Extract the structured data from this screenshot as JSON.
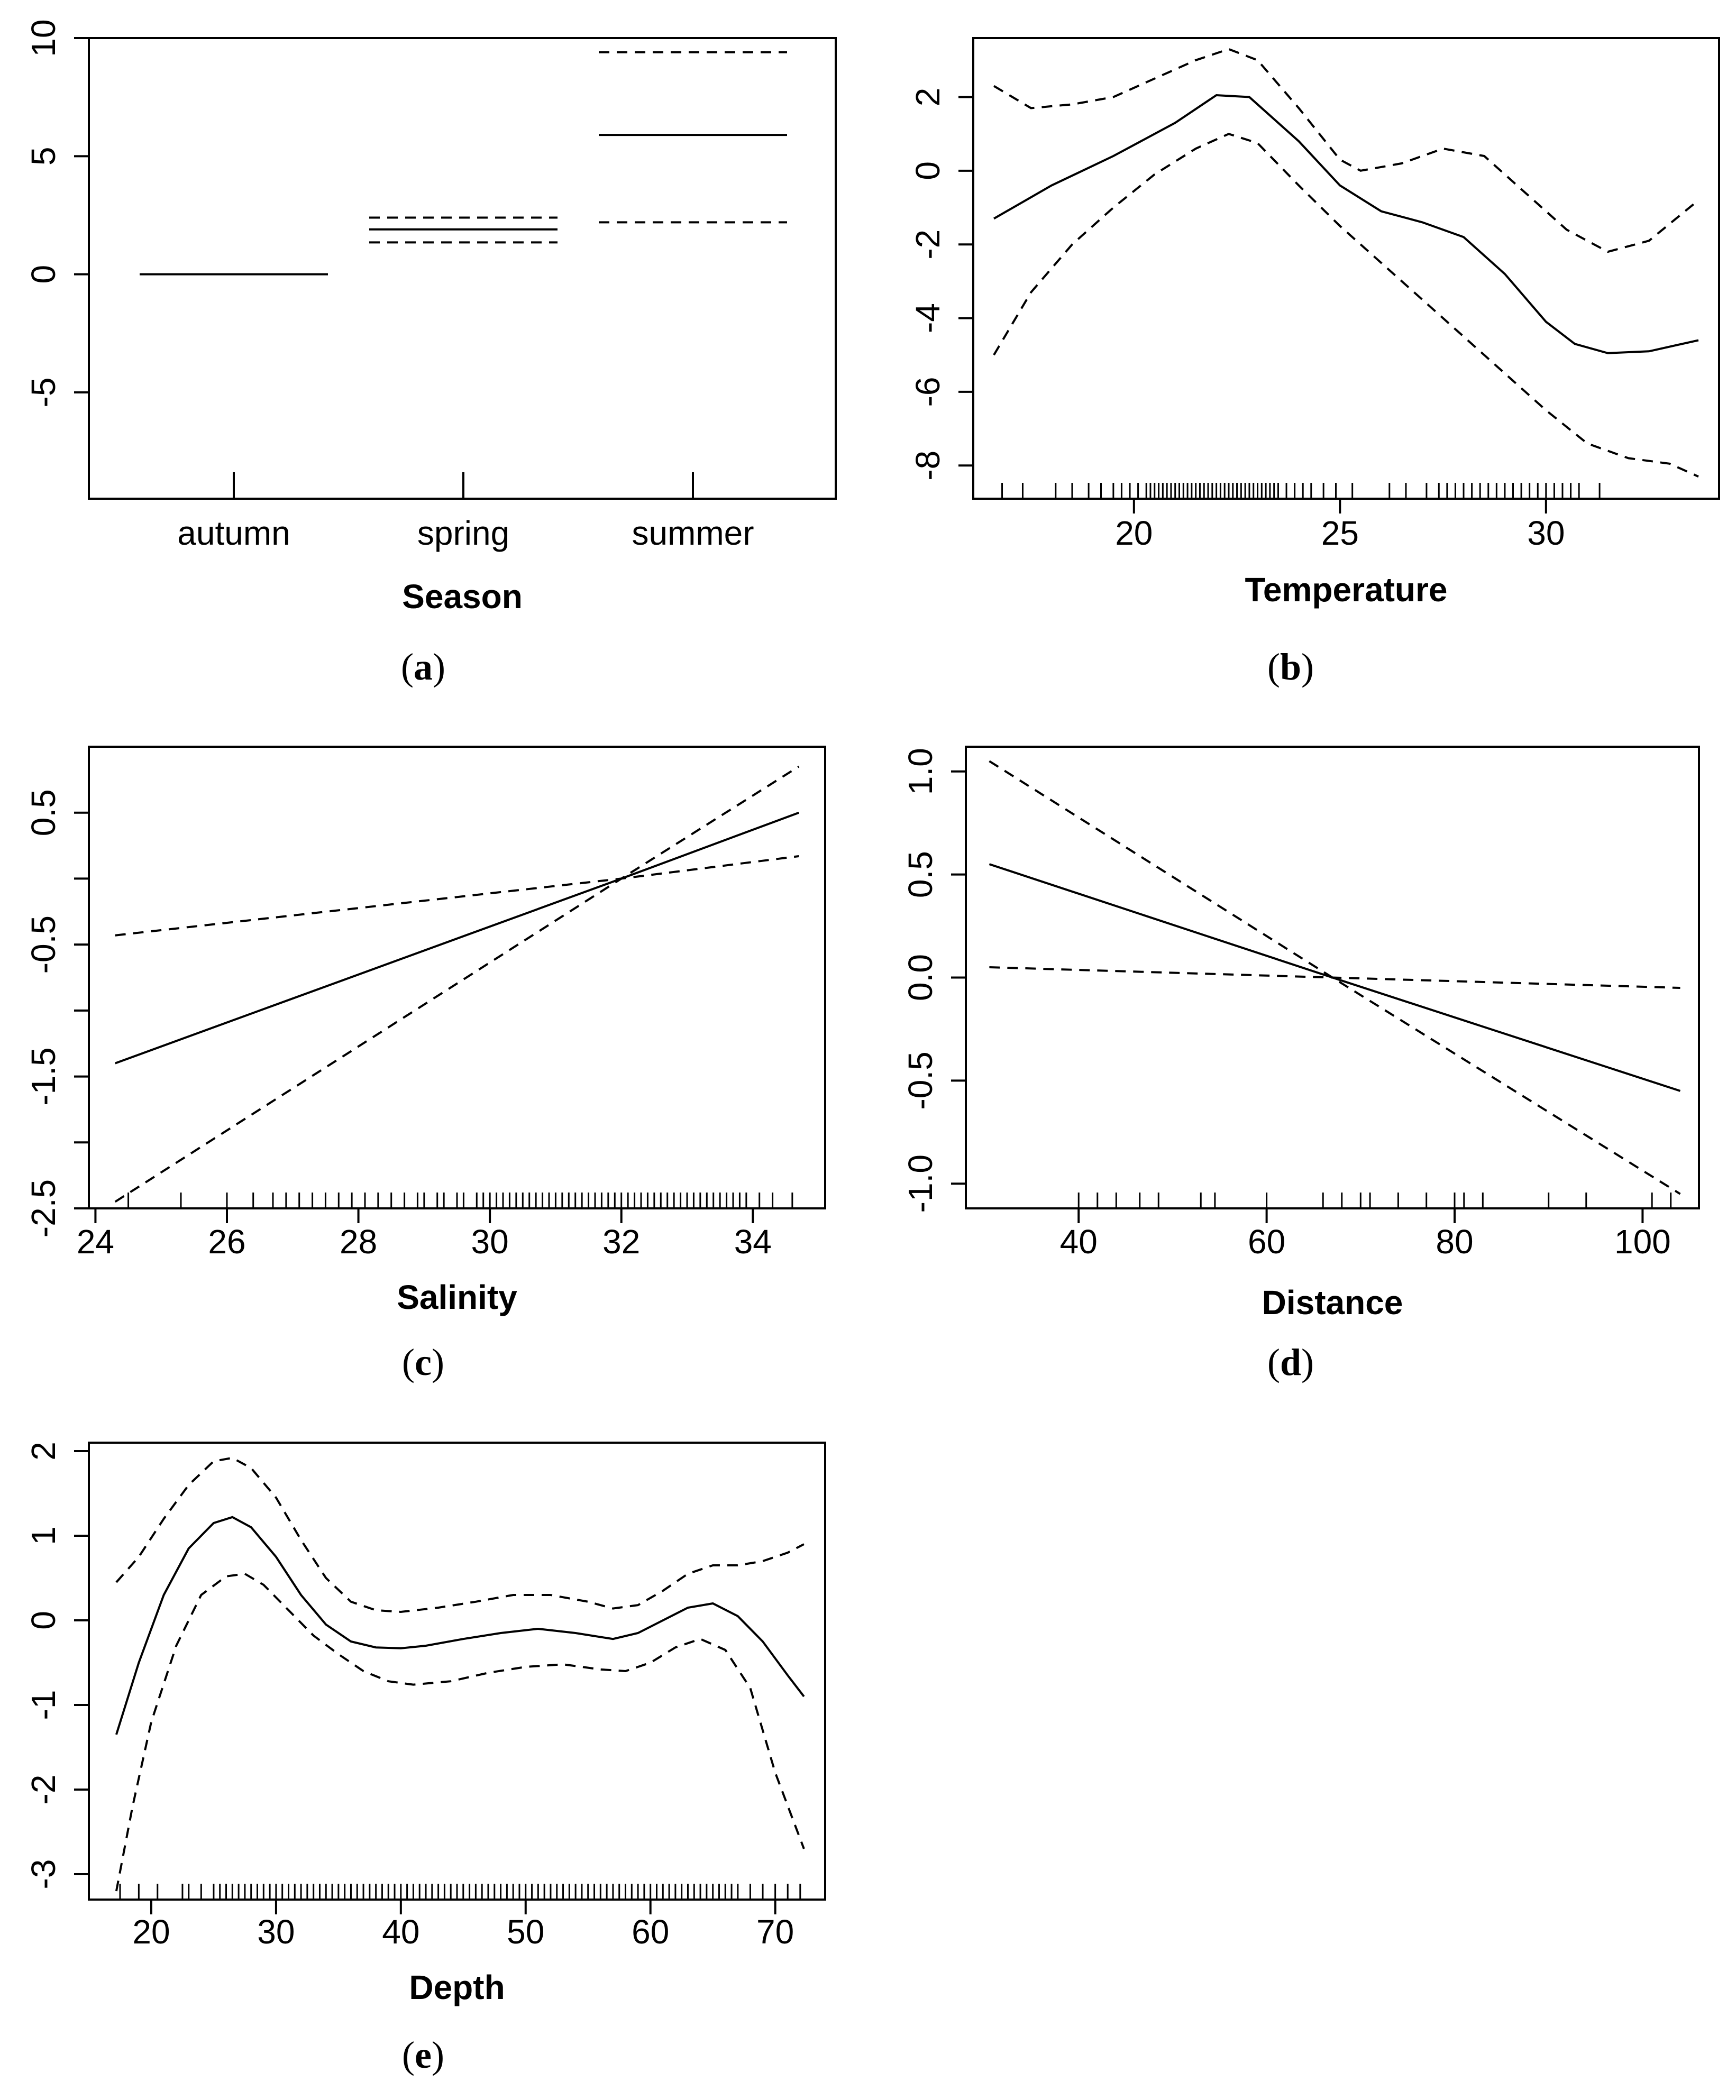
{
  "chart_data": [
    {
      "id": "a",
      "type": "line",
      "caption_letter": "a",
      "xlabel": "Season",
      "ylabel": "",
      "categories": [
        "autumn",
        "spring",
        "summer"
      ],
      "ylim": [
        -9.5,
        10
      ],
      "yticks": [
        {
          "value": -5,
          "label": "-5"
        },
        {
          "value": 0,
          "label": "0"
        },
        {
          "value": 5,
          "label": "5"
        },
        {
          "value": 10,
          "label": "10"
        }
      ],
      "series": [
        {
          "name": "fit",
          "style": "solid",
          "values": [
            0,
            1.9,
            5.9
          ]
        },
        {
          "name": "upper",
          "style": "dashed",
          "values": [
            null,
            2.4,
            9.4
          ]
        },
        {
          "name": "lower",
          "style": "dashed",
          "values": [
            null,
            1.35,
            2.2
          ]
        }
      ]
    },
    {
      "id": "b",
      "type": "line",
      "caption_letter": "b",
      "xlabel": "Temperature",
      "ylabel": "",
      "xlim": [
        16.1,
        34.2
      ],
      "ylim": [
        -8.9,
        3.6
      ],
      "xticks": [
        {
          "value": 20,
          "label": "20"
        },
        {
          "value": 25,
          "label": "25"
        },
        {
          "value": 30,
          "label": "30"
        }
      ],
      "yticks": [
        {
          "value": -8,
          "label": "-8"
        },
        {
          "value": -6,
          "label": "-6"
        },
        {
          "value": -4,
          "label": "-4"
        },
        {
          "value": -2,
          "label": "-2"
        },
        {
          "value": 0,
          "label": "0"
        },
        {
          "value": 2,
          "label": "2"
        }
      ],
      "series": [
        {
          "name": "fit",
          "style": "solid",
          "x": [
            16.6,
            18,
            19.5,
            21,
            22,
            22.8,
            24,
            25,
            26,
            27,
            28,
            29,
            30,
            30.7,
            31.5,
            32.5,
            33.7
          ],
          "y": [
            -1.3,
            -0.4,
            0.4,
            1.3,
            2.05,
            2.0,
            0.8,
            -0.4,
            -1.1,
            -1.4,
            -1.8,
            -2.8,
            -4.1,
            -4.7,
            -4.95,
            -4.9,
            -4.6
          ]
        },
        {
          "name": "upper",
          "style": "dashed",
          "x": [
            16.6,
            17.5,
            18.5,
            19.5,
            20.5,
            21.5,
            22.3,
            23,
            24,
            25,
            25.5,
            26.5,
            27.5,
            28.5,
            29.5,
            30.5,
            31.5,
            32.5,
            33.7
          ],
          "y": [
            2.3,
            1.7,
            1.8,
            2.0,
            2.5,
            3.0,
            3.3,
            3.0,
            1.7,
            0.3,
            0.0,
            0.2,
            0.6,
            0.4,
            -0.6,
            -1.6,
            -2.2,
            -1.9,
            -0.8
          ]
        },
        {
          "name": "lower",
          "style": "dashed",
          "x": [
            16.6,
            17.5,
            18.5,
            19.5,
            20.5,
            21.5,
            22.3,
            23,
            24,
            25,
            26,
            27,
            28,
            29,
            30,
            31,
            32,
            33,
            33.7
          ],
          "y": [
            -5.0,
            -3.3,
            -2.0,
            -1.0,
            -0.1,
            0.6,
            1.0,
            0.75,
            -0.4,
            -1.5,
            -2.5,
            -3.5,
            -4.5,
            -5.5,
            -6.5,
            -7.4,
            -7.8,
            -7.95,
            -8.3
          ]
        }
      ],
      "rug": [
        16.8,
        17.3,
        18.1,
        18.5,
        18.9,
        19.2,
        19.5,
        19.7,
        19.9,
        20.1,
        20.3,
        20.4,
        20.5,
        20.6,
        20.7,
        20.8,
        20.9,
        21.0,
        21.1,
        21.2,
        21.3,
        21.4,
        21.5,
        21.6,
        21.7,
        21.8,
        21.9,
        22.0,
        22.1,
        22.2,
        22.3,
        22.4,
        22.5,
        22.6,
        22.7,
        22.8,
        22.9,
        23.0,
        23.1,
        23.2,
        23.3,
        23.4,
        23.5,
        23.7,
        23.9,
        24.1,
        24.3,
        24.6,
        24.9,
        25.3,
        26.2,
        26.6,
        27.1,
        27.4,
        27.6,
        27.8,
        28.0,
        28.2,
        28.4,
        28.6,
        28.8,
        29.0,
        29.2,
        29.4,
        29.6,
        29.8,
        30.0,
        30.2,
        30.4,
        30.6,
        30.8,
        31.3
      ]
    },
    {
      "id": "c",
      "type": "line",
      "caption_letter": "c",
      "xlabel": "Salinity",
      "ylabel": "",
      "xlim": [
        23.9,
        35.1
      ],
      "ylim": [
        -2.5,
        1.0
      ],
      "xticks": [
        {
          "value": 24,
          "label": "24"
        },
        {
          "value": 26,
          "label": "26"
        },
        {
          "value": 28,
          "label": "28"
        },
        {
          "value": 30,
          "label": "30"
        },
        {
          "value": 32,
          "label": "32"
        },
        {
          "value": 34,
          "label": "34"
        }
      ],
      "yticks": [
        {
          "value": -2.5,
          "label": "-2.5"
        },
        {
          "value": -1.5,
          "label": "-1.5"
        },
        {
          "value": -0.5,
          "label": "-0.5"
        },
        {
          "value": 0.5,
          "label": "0.5"
        }
      ],
      "minor_yticks": [
        -2,
        -1,
        0
      ],
      "series": [
        {
          "name": "fit",
          "style": "solid",
          "x": [
            24.3,
            32,
            34.7
          ],
          "y": [
            -1.4,
            0.0,
            0.5
          ]
        },
        {
          "name": "upper",
          "style": "dashed",
          "x": [
            24.3,
            32,
            34.7
          ],
          "y": [
            -2.45,
            0.0,
            0.85
          ]
        },
        {
          "name": "lower",
          "style": "dashed",
          "x": [
            24.3,
            32,
            34.7
          ],
          "y": [
            -0.43,
            0.0,
            0.17
          ]
        }
      ],
      "rug": [
        24.5,
        25.3,
        26,
        26.4,
        26.7,
        26.9,
        27.1,
        27.3,
        27.5,
        27.7,
        27.9,
        28.1,
        28.3,
        28.5,
        28.7,
        28.9,
        29.0,
        29.2,
        29.3,
        29.5,
        29.6,
        29.8,
        29.9,
        30.0,
        30.1,
        30.2,
        30.3,
        30.4,
        30.5,
        30.6,
        30.7,
        30.8,
        30.9,
        31.0,
        31.1,
        31.2,
        31.3,
        31.4,
        31.5,
        31.6,
        31.7,
        31.8,
        31.9,
        32.0,
        32.1,
        32.2,
        32.3,
        32.4,
        32.5,
        32.6,
        32.7,
        32.8,
        32.9,
        33.0,
        33.1,
        33.2,
        33.3,
        33.4,
        33.5,
        33.6,
        33.7,
        33.8,
        33.9,
        34.1,
        34.3,
        34.6
      ]
    },
    {
      "id": "d",
      "type": "line",
      "caption_letter": "d",
      "xlabel": "Distance",
      "ylabel": "",
      "xlim": [
        28,
        106
      ],
      "ylim": [
        -1.12,
        1.12
      ],
      "xticks": [
        {
          "value": 40,
          "label": "40"
        },
        {
          "value": 60,
          "label": "60"
        },
        {
          "value": 80,
          "label": "80"
        },
        {
          "value": 100,
          "label": "100"
        }
      ],
      "yticks": [
        {
          "value": -1.0,
          "label": "-1.0"
        },
        {
          "value": -0.5,
          "label": "-0.5"
        },
        {
          "value": 0.0,
          "label": "0.0"
        },
        {
          "value": 0.5,
          "label": "0.5"
        },
        {
          "value": 1.0,
          "label": "1.0"
        }
      ],
      "series": [
        {
          "name": "fit",
          "style": "solid",
          "x": [
            30.5,
            67,
            104
          ],
          "y": [
            0.55,
            0.0,
            -0.55
          ]
        },
        {
          "name": "upper",
          "style": "dashed",
          "x": [
            30.5,
            67,
            104
          ],
          "y": [
            1.05,
            0.0,
            -1.05
          ]
        },
        {
          "name": "lower",
          "style": "dashed",
          "x": [
            30.5,
            67,
            104
          ],
          "y": [
            0.05,
            0.0,
            -0.05
          ]
        }
      ],
      "rug": [
        40,
        42,
        44,
        46.5,
        48.5,
        53,
        54.5,
        60,
        66,
        68,
        70,
        71,
        74,
        77,
        80,
        81,
        83,
        90,
        94,
        101,
        103
      ]
    },
    {
      "id": "e",
      "type": "line",
      "caption_letter": "e",
      "xlabel": "Depth",
      "ylabel": "",
      "xlim": [
        15,
        74
      ],
      "ylim": [
        -3.3,
        2.1
      ],
      "xticks": [
        {
          "value": 20,
          "label": "20"
        },
        {
          "value": 30,
          "label": "30"
        },
        {
          "value": 40,
          "label": "40"
        },
        {
          "value": 50,
          "label": "50"
        },
        {
          "value": 60,
          "label": "60"
        },
        {
          "value": 70,
          "label": "70"
        }
      ],
      "yticks": [
        {
          "value": -3,
          "label": "-3"
        },
        {
          "value": -2,
          "label": "-2"
        },
        {
          "value": -1,
          "label": "-1"
        },
        {
          "value": 0,
          "label": "0"
        },
        {
          "value": 1,
          "label": "1"
        },
        {
          "value": 2,
          "label": "2"
        }
      ],
      "series": [
        {
          "name": "fit",
          "style": "solid",
          "x": [
            17.2,
            19,
            21,
            23,
            25,
            26.5,
            28,
            30,
            32,
            34,
            36,
            38,
            40,
            42,
            45,
            48,
            51,
            54,
            57,
            59,
            61,
            63,
            65,
            67,
            69,
            71,
            72.3
          ],
          "y": [
            -1.35,
            -0.5,
            0.3,
            0.85,
            1.15,
            1.22,
            1.1,
            0.75,
            0.3,
            -0.05,
            -0.25,
            -0.32,
            -0.33,
            -0.3,
            -0.22,
            -0.15,
            -0.1,
            -0.15,
            -0.22,
            -0.15,
            0.0,
            0.15,
            0.2,
            0.05,
            -0.25,
            -0.65,
            -0.9
          ]
        },
        {
          "name": "upper",
          "style": "dashed",
          "x": [
            17.2,
            19,
            21,
            23,
            25,
            26.5,
            28,
            30,
            32,
            34,
            36,
            38,
            40,
            43,
            46,
            49,
            52,
            55,
            57,
            59,
            61,
            63,
            65,
            67,
            69,
            71,
            72.3
          ],
          "y": [
            0.45,
            0.75,
            1.2,
            1.6,
            1.88,
            1.92,
            1.8,
            1.45,
            0.95,
            0.5,
            0.22,
            0.12,
            0.1,
            0.15,
            0.22,
            0.3,
            0.3,
            0.22,
            0.14,
            0.18,
            0.35,
            0.55,
            0.65,
            0.65,
            0.7,
            0.8,
            0.9
          ]
        },
        {
          "name": "lower",
          "style": "dashed",
          "x": [
            17.2,
            18.5,
            20,
            22,
            24,
            26,
            27.5,
            29,
            31,
            33,
            35,
            37,
            39,
            41,
            44,
            47,
            50,
            53,
            56,
            58,
            60,
            62,
            64,
            66,
            68,
            70,
            72.3
          ],
          "y": [
            -3.2,
            -2.2,
            -1.2,
            -0.3,
            0.3,
            0.52,
            0.55,
            0.42,
            0.12,
            -0.18,
            -0.4,
            -0.6,
            -0.72,
            -0.76,
            -0.72,
            -0.62,
            -0.55,
            -0.52,
            -0.58,
            -0.6,
            -0.5,
            -0.32,
            -0.22,
            -0.35,
            -0.8,
            -1.8,
            -2.7
          ]
        }
      ],
      "rug": [
        17.5,
        19,
        20.5,
        22.5,
        23,
        24,
        25,
        25.5,
        26,
        26.5,
        27,
        27.5,
        28,
        28.5,
        29,
        29.5,
        30,
        30.5,
        31,
        31.5,
        32,
        32.5,
        33,
        33.5,
        34,
        34.5,
        35,
        35.5,
        36,
        36.5,
        37,
        37.5,
        38,
        38.5,
        39,
        39.5,
        40,
        40.5,
        41,
        41.5,
        42,
        42.5,
        43,
        43.5,
        44,
        44.5,
        45,
        45.5,
        46,
        46.5,
        47,
        47.5,
        48,
        48.5,
        49,
        49.5,
        50,
        50.5,
        51,
        51.5,
        52,
        52.5,
        53,
        53.5,
        54,
        54.5,
        55,
        55.5,
        56,
        56.5,
        57,
        57.5,
        58,
        58.5,
        59,
        59.5,
        60,
        60.5,
        61,
        61.5,
        62,
        62.5,
        63,
        63.5,
        64,
        64.5,
        65,
        65.5,
        66,
        66.5,
        67,
        68,
        69,
        70,
        71,
        72
      ]
    }
  ]
}
